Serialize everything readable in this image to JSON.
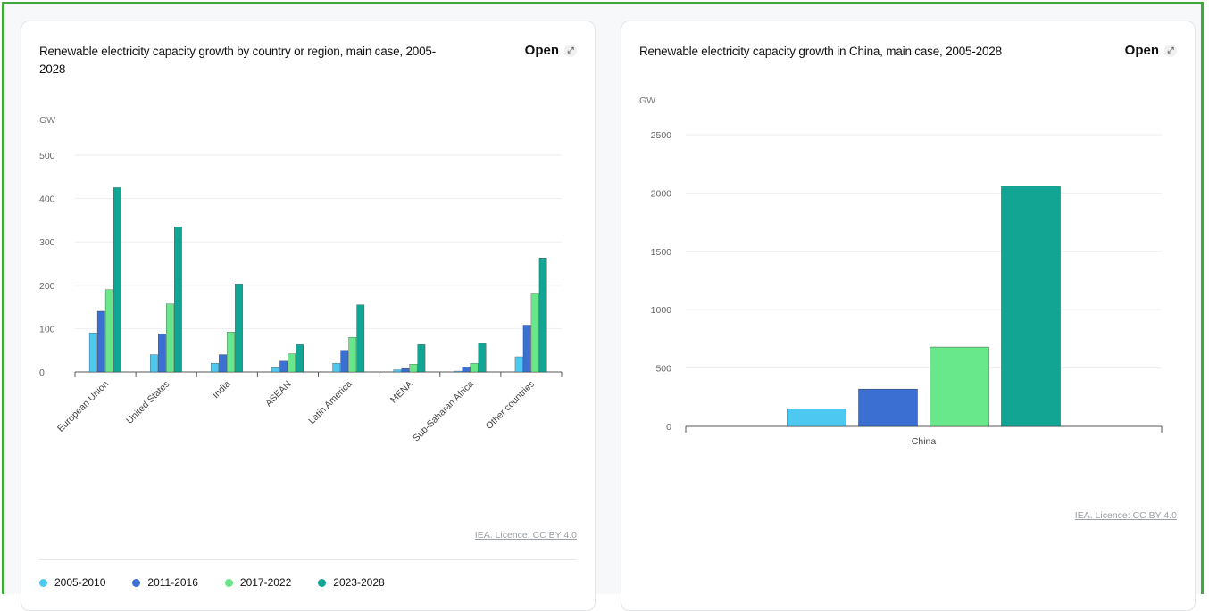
{
  "colors": {
    "s2005": "#4dc8f0",
    "s2011": "#3b6fd1",
    "s2017": "#68e88a",
    "s2023": "#13a593"
  },
  "cards": [
    {
      "title": "Renewable electricity capacity growth by country or region, main case, 2005-2028",
      "open_label": "Open",
      "licence": "IEA. Licence: CC BY 4.0"
    },
    {
      "title": "Renewable electricity capacity growth in China, main case, 2005-2028",
      "open_label": "Open",
      "licence": "IEA. Licence: CC BY 4.0"
    }
  ],
  "legend": [
    "2005-2010",
    "2011-2016",
    "2017-2022",
    "2023-2028"
  ],
  "chart_data": [
    {
      "type": "bar",
      "title": "Renewable electricity capacity growth by country or region, main case, 2005-2028",
      "ylabel": "GW",
      "ylim": [
        0,
        500
      ],
      "yticks": [
        0,
        100,
        200,
        300,
        400,
        500
      ],
      "grid": true,
      "legend_position": "bottom-left",
      "categories": [
        "European Union",
        "United States",
        "India",
        "ASEAN",
        "Latin America",
        "MENA",
        "Sub-Saharan Africa",
        "Other countries"
      ],
      "series": [
        {
          "name": "2005-2010",
          "values": [
            90,
            40,
            20,
            10,
            20,
            5,
            2,
            35
          ]
        },
        {
          "name": "2011-2016",
          "values": [
            140,
            88,
            40,
            25,
            50,
            8,
            12,
            108
          ]
        },
        {
          "name": "2017-2022",
          "values": [
            190,
            157,
            92,
            42,
            80,
            18,
            20,
            180
          ]
        },
        {
          "name": "2023-2028",
          "values": [
            425,
            335,
            203,
            63,
            155,
            63,
            67,
            263
          ]
        }
      ]
    },
    {
      "type": "bar",
      "title": "Renewable electricity capacity growth in China, main case, 2005-2028",
      "ylabel": "GW",
      "ylim": [
        0,
        2500
      ],
      "yticks": [
        0,
        500,
        1000,
        1500,
        2000,
        2500
      ],
      "grid": true,
      "categories": [
        "China"
      ],
      "series": [
        {
          "name": "2005-2010",
          "values": [
            150
          ]
        },
        {
          "name": "2011-2016",
          "values": [
            320
          ]
        },
        {
          "name": "2017-2022",
          "values": [
            680
          ]
        },
        {
          "name": "2023-2028",
          "values": [
            2060
          ]
        }
      ]
    }
  ]
}
